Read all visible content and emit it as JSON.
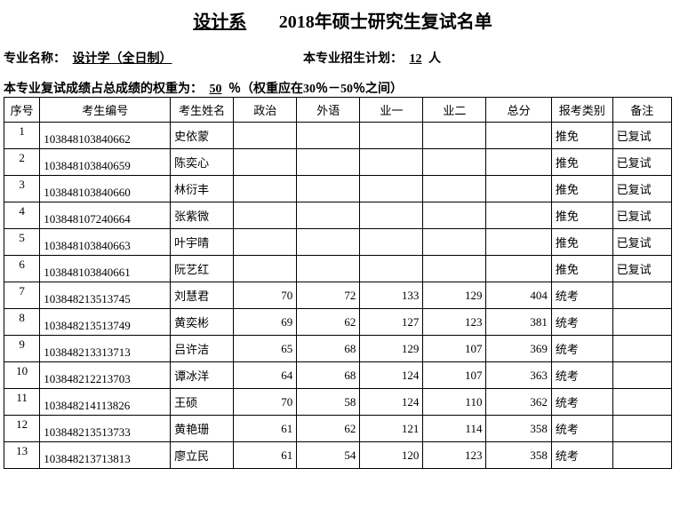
{
  "title": {
    "dept": "设计系",
    "year": "2018年硕士研究生复试名单"
  },
  "major_line": {
    "label": "专业名称：",
    "value": "设计学（全日制）",
    "plan_label": "本专业招生计划：",
    "plan_value": "12",
    "plan_suffix": "人"
  },
  "weight_line": {
    "label": "本专业复试成绩占总成绩的权重为：",
    "value": "50",
    "suffix": "％（权重应在30％－50％之间）"
  },
  "headers": {
    "seq": "序号",
    "id": "考生编号",
    "name": "考生姓名",
    "pol": "政治",
    "for": "外语",
    "s1": "业一",
    "s2": "业二",
    "total": "总分",
    "cat": "报考类别",
    "note": "备注"
  },
  "rows": [
    {
      "seq": "1",
      "id": "103848103840662",
      "name": "史依蒙",
      "pol": "",
      "for": "",
      "s1": "",
      "s2": "",
      "total": "",
      "cat": "推免",
      "note": "已复试"
    },
    {
      "seq": "2",
      "id": "103848103840659",
      "name": "陈奕心",
      "pol": "",
      "for": "",
      "s1": "",
      "s2": "",
      "total": "",
      "cat": "推免",
      "note": "已复试"
    },
    {
      "seq": "3",
      "id": "103848103840660",
      "name": "林衍丰",
      "pol": "",
      "for": "",
      "s1": "",
      "s2": "",
      "total": "",
      "cat": "推免",
      "note": "已复试"
    },
    {
      "seq": "4",
      "id": "103848107240664",
      "name": "张紫微",
      "pol": "",
      "for": "",
      "s1": "",
      "s2": "",
      "total": "",
      "cat": "推免",
      "note": "已复试"
    },
    {
      "seq": "5",
      "id": "103848103840663",
      "name": "叶宇晴",
      "pol": "",
      "for": "",
      "s1": "",
      "s2": "",
      "total": "",
      "cat": "推免",
      "note": "已复试"
    },
    {
      "seq": "6",
      "id": "103848103840661",
      "name": "阮艺红",
      "pol": "",
      "for": "",
      "s1": "",
      "s2": "",
      "total": "",
      "cat": "推免",
      "note": "已复试"
    },
    {
      "seq": "7",
      "id": "103848213513745",
      "name": "刘慧君",
      "pol": "70",
      "for": "72",
      "s1": "133",
      "s2": "129",
      "total": "404",
      "cat": "统考",
      "note": ""
    },
    {
      "seq": "8",
      "id": "103848213513749",
      "name": "黄奕彬",
      "pol": "69",
      "for": "62",
      "s1": "127",
      "s2": "123",
      "total": "381",
      "cat": "统考",
      "note": ""
    },
    {
      "seq": "9",
      "id": "103848213313713",
      "name": "吕许洁",
      "pol": "65",
      "for": "68",
      "s1": "129",
      "s2": "107",
      "total": "369",
      "cat": "统考",
      "note": ""
    },
    {
      "seq": "10",
      "id": "103848212213703",
      "name": "谭冰洋",
      "pol": "64",
      "for": "68",
      "s1": "124",
      "s2": "107",
      "total": "363",
      "cat": "统考",
      "note": ""
    },
    {
      "seq": "11",
      "id": "103848214113826",
      "name": "王硕",
      "pol": "70",
      "for": "58",
      "s1": "124",
      "s2": "110",
      "total": "362",
      "cat": "统考",
      "note": ""
    },
    {
      "seq": "12",
      "id": "103848213513733",
      "name": "黄艳珊",
      "pol": "61",
      "for": "62",
      "s1": "121",
      "s2": "114",
      "total": "358",
      "cat": "统考",
      "note": ""
    },
    {
      "seq": "13",
      "id": "103848213713813",
      "name": "廖立民",
      "pol": "61",
      "for": "54",
      "s1": "120",
      "s2": "123",
      "total": "358",
      "cat": "统考",
      "note": ""
    }
  ]
}
